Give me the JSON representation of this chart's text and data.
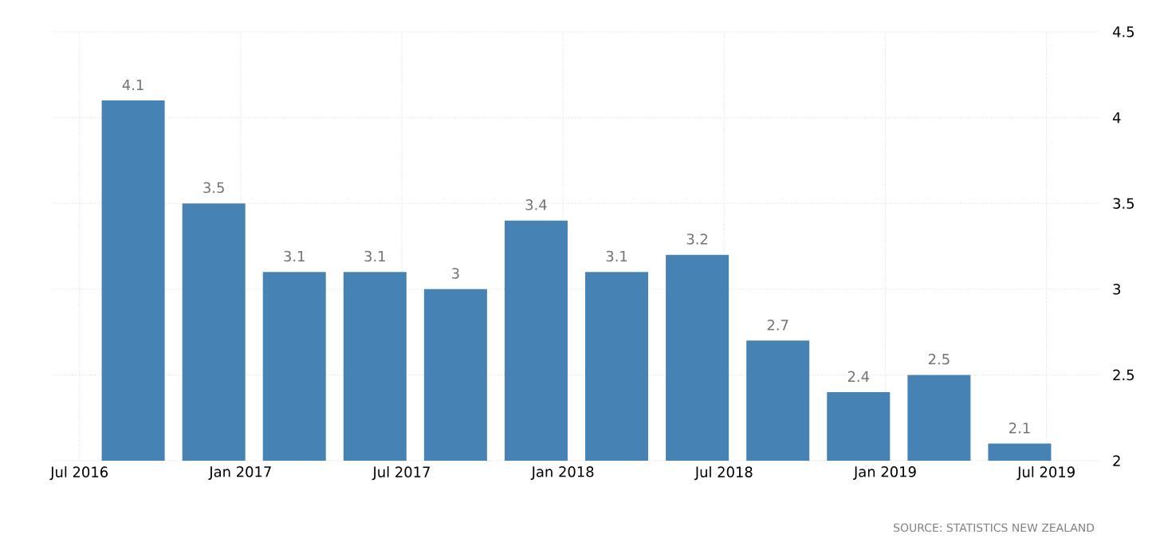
{
  "chart_data": {
    "type": "bar",
    "x": [
      "2016-09",
      "2016-12",
      "2017-03",
      "2017-06",
      "2017-09",
      "2017-12",
      "2018-03",
      "2018-06",
      "2018-09",
      "2018-12",
      "2019-03",
      "2019-06"
    ],
    "values": [
      4.1,
      3.5,
      3.1,
      3.1,
      3,
      3.4,
      3.1,
      3.2,
      2.7,
      2.4,
      2.5,
      2.1
    ],
    "color": "#4682b4",
    "xlim": [
      "2016-06",
      "2019-09"
    ],
    "xticks": [
      {
        "value": "2016-07",
        "label": "Jul 2016"
      },
      {
        "value": "2017-01",
        "label": "Jan 2017"
      },
      {
        "value": "2017-07",
        "label": "Jul 2017"
      },
      {
        "value": "2018-01",
        "label": "Jan 2018"
      },
      {
        "value": "2018-07",
        "label": "Jul 2018"
      },
      {
        "value": "2019-01",
        "label": "Jan 2019"
      },
      {
        "value": "2019-07",
        "label": "Jul 2019"
      }
    ],
    "ylim": [
      2,
      4.5
    ],
    "yticks": [
      2,
      2.5,
      3,
      3.5,
      4,
      4.5
    ],
    "grid": true,
    "data_labels": true,
    "annotations": [
      "SOURCE: STATISTICS NEW ZEALAND"
    ]
  }
}
